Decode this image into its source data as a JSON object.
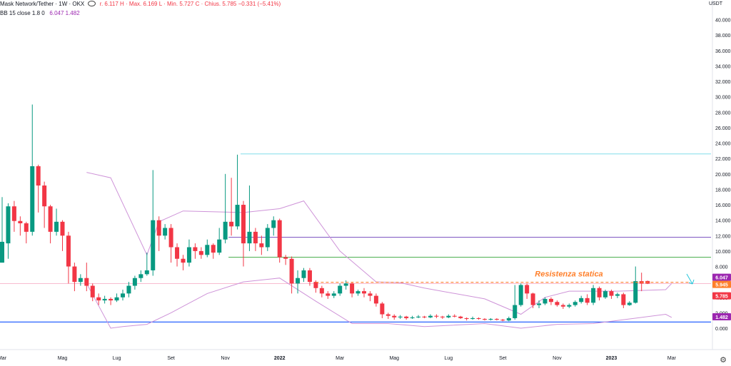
{
  "legend": {
    "symbol": "Mask Network/Tether · 1W · OKX",
    "ohlc_text": "r. 6.117  H · Max. 6.169  L · Min. 5.727  C · Chius. 5.785  −0.331 (−5.41%)",
    "bb_label": "BB 15 close 1.8 0",
    "bb_values": "6.047  1.482",
    "currency": "USDT"
  },
  "colors": {
    "up": "#089981",
    "down": "#f23645",
    "bollinger": "#ce93d8",
    "resistance": "#ff7f2a",
    "hline_purple": "#7e57c2",
    "hline_green": "#4caf50",
    "hline_cyan": "#80deea",
    "hline_blue": "#2962ff",
    "last_price_line": "#f8bbd0"
  },
  "chart_data": {
    "type": "candlestick",
    "interval": "1W",
    "ylim": [
      0,
      42
    ],
    "y_ticks": [
      "0.000",
      "2.000",
      "4.000",
      "6.000",
      "8.000",
      "10.000",
      "12.000",
      "14.000",
      "16.000",
      "18.000",
      "20.000",
      "22.000",
      "24.000",
      "26.000",
      "28.000",
      "30.000",
      "32.000",
      "34.000",
      "36.000",
      "38.000",
      "40.000"
    ],
    "x_ticks": [
      {
        "label": "Mar",
        "i": 0
      },
      {
        "label": "Mag",
        "i": 10
      },
      {
        "label": "Lug",
        "i": 19
      },
      {
        "label": "Set",
        "i": 28
      },
      {
        "label": "Nov",
        "i": 37
      },
      {
        "label": "2022",
        "i": 46
      },
      {
        "label": "Mar",
        "i": 56
      },
      {
        "label": "Mag",
        "i": 65
      },
      {
        "label": "Lug",
        "i": 74
      },
      {
        "label": "Set",
        "i": 83
      },
      {
        "label": "Nov",
        "i": 92
      },
      {
        "label": "2023",
        "i": 101
      },
      {
        "label": "Mar",
        "i": 111
      }
    ],
    "candles": [
      [
        8.5,
        11.2,
        8.5,
        17.0
      ],
      [
        11.0,
        15.8,
        9.0,
        16.2
      ],
      [
        15.8,
        13.9,
        12.5,
        16.5
      ],
      [
        13.9,
        13.6,
        12.0,
        14.5
      ],
      [
        13.6,
        12.5,
        11.0,
        13.8
      ],
      [
        12.5,
        21.0,
        12.0,
        29.0
      ],
      [
        21.0,
        18.5,
        15.0,
        21.2
      ],
      [
        18.5,
        15.8,
        13.0,
        19.0
      ],
      [
        15.8,
        12.5,
        11.0,
        16.0
      ],
      [
        12.5,
        13.8,
        12.0,
        15.5
      ],
      [
        13.8,
        12.0,
        10.0,
        14.0
      ],
      [
        12.0,
        8.0,
        5.8,
        12.5
      ],
      [
        8.0,
        6.0,
        4.8,
        8.5
      ],
      [
        6.0,
        6.5,
        5.5,
        7.0
      ],
      [
        6.5,
        5.5,
        4.8,
        8.5
      ],
      [
        5.5,
        4.0,
        3.5,
        5.8
      ],
      [
        4.0,
        3.6,
        3.0,
        4.5
      ],
      [
        3.6,
        3.8,
        3.2,
        4.2
      ],
      [
        3.8,
        3.6,
        3.0,
        4.0
      ],
      [
        3.6,
        4.0,
        3.4,
        4.5
      ],
      [
        4.0,
        4.5,
        3.6,
        5.0
      ],
      [
        4.5,
        5.5,
        4.0,
        6.0
      ],
      [
        5.5,
        6.5,
        5.0,
        6.8
      ],
      [
        6.5,
        7.0,
        6.0,
        7.5
      ],
      [
        7.0,
        7.5,
        6.8,
        9.8
      ],
      [
        7.5,
        14.0,
        6.8,
        20.5
      ],
      [
        14.0,
        12.0,
        10.0,
        14.5
      ],
      [
        12.0,
        13.0,
        11.5,
        13.5
      ],
      [
        13.0,
        10.5,
        8.5,
        13.5
      ],
      [
        10.5,
        9.0,
        8.0,
        11.0
      ],
      [
        9.0,
        8.5,
        7.5,
        9.5
      ],
      [
        8.5,
        10.5,
        8.0,
        11.5
      ],
      [
        10.5,
        10.0,
        9.0,
        11.0
      ],
      [
        10.0,
        9.5,
        9.0,
        10.5
      ],
      [
        9.5,
        10.8,
        9.2,
        11.5
      ],
      [
        10.8,
        9.8,
        9.0,
        11.0
      ],
      [
        9.8,
        11.5,
        9.5,
        13.0
      ],
      [
        11.5,
        13.8,
        11.0,
        20.0
      ],
      [
        13.8,
        13.2,
        12.0,
        19.5
      ],
      [
        13.2,
        16.0,
        12.8,
        22.5
      ],
      [
        16.0,
        11.0,
        8.0,
        16.5
      ],
      [
        11.0,
        12.5,
        10.0,
        18.5
      ],
      [
        12.5,
        11.0,
        10.0,
        13.0
      ],
      [
        11.0,
        10.5,
        9.5,
        12.0
      ],
      [
        10.5,
        13.0,
        10.0,
        13.5
      ],
      [
        13.0,
        14.0,
        12.0,
        14.5
      ],
      [
        14.0,
        9.2,
        8.5,
        14.2
      ],
      [
        9.2,
        9.0,
        8.2,
        9.5
      ],
      [
        9.0,
        5.8,
        4.5,
        9.3
      ],
      [
        5.8,
        6.5,
        4.5,
        7.5
      ],
      [
        6.5,
        7.5,
        6.0,
        7.8
      ],
      [
        7.5,
        6.0,
        5.5,
        7.8
      ],
      [
        6.0,
        5.2,
        4.6,
        6.2
      ],
      [
        5.2,
        4.5,
        4.0,
        5.5
      ],
      [
        4.5,
        4.2,
        3.8,
        4.8
      ],
      [
        4.2,
        4.5,
        3.9,
        4.8
      ],
      [
        4.5,
        5.5,
        4.2,
        5.8
      ],
      [
        5.5,
        5.8,
        5.0,
        6.2
      ],
      [
        5.8,
        4.5,
        4.0,
        6.0
      ],
      [
        4.5,
        4.8,
        4.2,
        5.0
      ],
      [
        4.8,
        4.5,
        4.0,
        5.2
      ],
      [
        4.5,
        4.2,
        3.5,
        4.8
      ],
      [
        4.2,
        3.2,
        2.8,
        4.5
      ],
      [
        3.2,
        1.8,
        1.3,
        3.4
      ],
      [
        1.8,
        1.6,
        1.2,
        2.0
      ],
      [
        1.6,
        1.4,
        1.1,
        1.8
      ],
      [
        1.4,
        1.5,
        1.2,
        1.7
      ],
      [
        1.5,
        1.3,
        1.1,
        1.6
      ],
      [
        1.3,
        1.4,
        1.2,
        1.6
      ],
      [
        1.4,
        1.5,
        1.3,
        1.7
      ],
      [
        1.5,
        1.4,
        1.3,
        1.6
      ],
      [
        1.4,
        1.6,
        1.3,
        1.8
      ],
      [
        1.6,
        1.5,
        1.3,
        1.8
      ],
      [
        1.5,
        1.4,
        1.2,
        1.6
      ],
      [
        1.4,
        1.6,
        1.3,
        1.8
      ],
      [
        1.6,
        1.5,
        1.4,
        1.8
      ],
      [
        1.5,
        1.3,
        1.2,
        1.6
      ],
      [
        1.3,
        1.2,
        1.0,
        1.4
      ],
      [
        1.2,
        1.3,
        1.1,
        1.5
      ],
      [
        1.3,
        1.2,
        1.1,
        1.4
      ],
      [
        1.2,
        1.1,
        1.0,
        1.3
      ],
      [
        1.1,
        1.2,
        1.0,
        1.3
      ],
      [
        1.2,
        1.1,
        1.0,
        1.3
      ],
      [
        1.1,
        1.0,
        0.9,
        1.2
      ],
      [
        1.0,
        1.3,
        0.9,
        1.5
      ],
      [
        1.3,
        3.0,
        1.1,
        5.6
      ],
      [
        3.0,
        5.6,
        2.8,
        5.8
      ],
      [
        5.6,
        4.5,
        3.8,
        5.8
      ],
      [
        4.5,
        3.0,
        2.6,
        4.6
      ],
      [
        3.0,
        3.2,
        2.6,
        3.6
      ],
      [
        3.2,
        3.8,
        3.0,
        4.0
      ],
      [
        3.8,
        3.4,
        3.0,
        4.0
      ],
      [
        3.4,
        3.0,
        2.8,
        3.6
      ],
      [
        3.0,
        2.8,
        2.5,
        3.2
      ],
      [
        2.8,
        3.0,
        2.6,
        3.2
      ],
      [
        3.0,
        3.4,
        2.8,
        3.6
      ],
      [
        3.4,
        3.9,
        3.2,
        4.2
      ],
      [
        3.9,
        3.3,
        3.0,
        4.4
      ],
      [
        3.3,
        5.2,
        3.0,
        5.6
      ],
      [
        5.2,
        4.0,
        3.6,
        5.4
      ],
      [
        4.0,
        4.8,
        3.8,
        5.0
      ],
      [
        4.8,
        4.2,
        3.8,
        5.0
      ],
      [
        4.2,
        4.4,
        3.9,
        4.6
      ],
      [
        4.4,
        3.0,
        2.6,
        4.6
      ],
      [
        3.0,
        3.3,
        2.9,
        3.5
      ],
      [
        3.3,
        6.1,
        3.2,
        8.0
      ],
      [
        6.1,
        5.8,
        4.8,
        7.2
      ],
      [
        6.117,
        5.785,
        5.727,
        6.169
      ]
    ],
    "bollinger_upper": [
      null,
      null,
      null,
      null,
      null,
      null,
      null,
      null,
      null,
      null,
      null,
      null,
      null,
      null,
      null,
      null,
      null,
      null,
      null,
      null,
      null,
      null,
      null,
      null,
      null,
      null,
      null,
      null,
      null,
      null,
      null,
      null,
      null,
      null,
      null,
      null,
      null,
      null,
      null,
      null,
      null,
      null,
      null,
      null,
      null,
      null,
      null,
      null,
      null,
      null,
      null,
      null,
      null,
      null,
      null,
      null,
      null,
      null,
      null,
      null,
      null,
      null,
      null,
      null,
      null,
      null,
      null,
      null,
      null,
      null,
      null,
      null,
      null,
      null,
      null,
      null,
      null,
      null,
      null,
      null,
      null,
      null,
      null,
      null,
      null,
      null,
      null,
      null,
      null,
      null,
      null,
      null,
      null,
      null,
      null,
      null,
      null,
      null,
      null,
      null,
      null,
      null,
      null,
      null,
      null,
      null,
      null
    ],
    "bollinger_mid_keypoints": [
      [
        14,
        6.0
      ],
      [
        18,
        4.2
      ],
      [
        24,
        7.5
      ],
      [
        30,
        10.5
      ],
      [
        38,
        11.5
      ],
      [
        46,
        11.5
      ],
      [
        50,
        7.0
      ],
      [
        58,
        5.5
      ],
      [
        64,
        2.5
      ],
      [
        70,
        1.6
      ],
      [
        80,
        1.4
      ],
      [
        86,
        2.8
      ],
      [
        92,
        3.6
      ],
      [
        100,
        4.0
      ],
      [
        111,
        4.2
      ]
    ],
    "bollinger_upper_keypoints": [
      [
        14,
        20.2
      ],
      [
        18,
        19.5
      ],
      [
        24,
        9.5
      ],
      [
        26,
        13.8
      ],
      [
        30,
        15.2
      ],
      [
        40,
        15.0
      ],
      [
        46,
        15.5
      ],
      [
        50,
        16.5
      ],
      [
        56,
        10.0
      ],
      [
        62,
        6.0
      ],
      [
        66,
        5.9
      ],
      [
        70,
        5.2
      ],
      [
        80,
        3.8
      ],
      [
        86,
        1.8
      ],
      [
        90,
        4.0
      ],
      [
        94,
        4.8
      ],
      [
        102,
        4.8
      ],
      [
        110,
        5.0
      ],
      [
        111,
        5.8
      ]
    ],
    "bollinger_lower_keypoints": [
      [
        14,
        5.8
      ],
      [
        18,
        0.0
      ],
      [
        20,
        0.2
      ],
      [
        24,
        0.5
      ],
      [
        28,
        2.0
      ],
      [
        34,
        4.5
      ],
      [
        40,
        6.0
      ],
      [
        46,
        6.5
      ],
      [
        52,
        3.5
      ],
      [
        58,
        0.6
      ],
      [
        64,
        0.6
      ],
      [
        70,
        0.2
      ],
      [
        80,
        0.6
      ],
      [
        86,
        0.0
      ],
      [
        92,
        0.5
      ],
      [
        98,
        0.6
      ],
      [
        110,
        1.8
      ],
      [
        111,
        1.4
      ]
    ],
    "hlines": [
      {
        "y": 22.6,
        "color_key": "hline_cyan",
        "from_i": 40
      },
      {
        "y": 11.8,
        "color_key": "hline_purple",
        "from_i": 38
      },
      {
        "y": 9.2,
        "color_key": "hline_green",
        "from_i": 38
      },
      {
        "y": 5.785,
        "color_key": "last_price_line",
        "from_i": 0
      },
      {
        "y": 0.8,
        "color_key": "hline_blue",
        "from_i": 0
      }
    ],
    "resistance": {
      "y": 5.95,
      "from_i": 52,
      "to_i": 114,
      "label": "Resistenza statica"
    },
    "price_labels": [
      {
        "text": "6.047",
        "y": 6.047,
        "bg": "#9c27b0"
      },
      {
        "text": "5.945",
        "y": 5.95,
        "bg": "#ff7f2a"
      },
      {
        "text": "5.785",
        "y": 5.785,
        "bg": "#f23645"
      },
      {
        "text": "1.482",
        "y": 1.482,
        "bg": "#9c27b0"
      }
    ]
  }
}
